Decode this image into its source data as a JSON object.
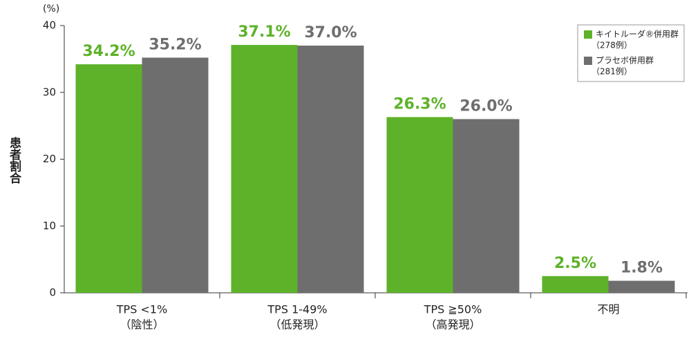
{
  "chart_data": {
    "type": "bar",
    "y_unit": "(%)",
    "y_label": "患者割合",
    "categories": [
      [
        "TPS <1%",
        "（陰性）"
      ],
      [
        "TPS 1-49%",
        "（低発現）"
      ],
      [
        "TPS ≧50%",
        "（高発現）"
      ],
      [
        "不明"
      ]
    ],
    "series": [
      {
        "name": "キイトルーダ®併用群",
        "count_label": "（278例）",
        "color": "#5db229",
        "values": [
          34.2,
          37.1,
          26.3,
          2.5
        ],
        "value_labels": [
          "34.2%",
          "37.1%",
          "26.3%",
          "2.5%"
        ]
      },
      {
        "name": "プラセボ併用群",
        "count_label": "（281例）",
        "color": "#6e6e6e",
        "values": [
          35.2,
          37.0,
          26.0,
          1.8
        ],
        "value_labels": [
          "35.2%",
          "37.0%",
          "26.0%",
          "1.8%"
        ]
      }
    ],
    "ylim": [
      0,
      40
    ],
    "yticks": [
      0,
      10,
      20,
      30,
      40
    ],
    "grid": false,
    "legend": "top-right"
  }
}
